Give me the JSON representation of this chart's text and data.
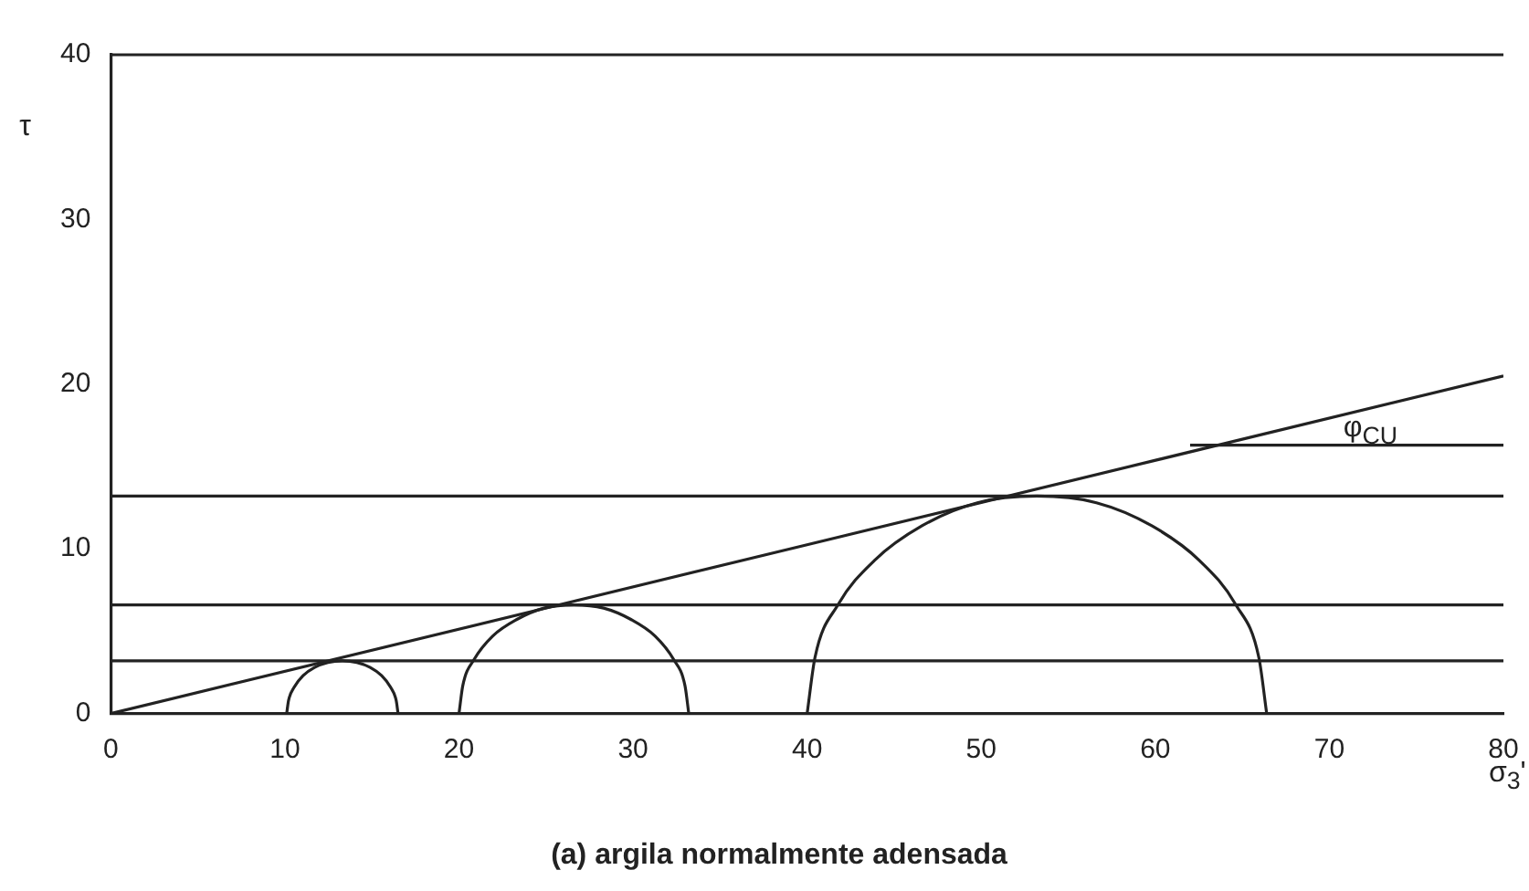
{
  "chart_data": {
    "type": "line",
    "title": "(a) argila normalmente adensada",
    "xlabel": "σ$_{3}$'",
    "ylabel": "τ",
    "xlim": [
      0,
      80
    ],
    "xticks": [
      0,
      10,
      20,
      30,
      40,
      50,
      60,
      70,
      80
    ],
    "ylim": [
      0,
      40
    ],
    "yticks": [
      0,
      10,
      20,
      30,
      40
    ],
    "grid": false,
    "legend": false,
    "marker": "none",
    "line_style": "solid",
    "series": [
      {
        "color": "#222222",
        "x": [
          10.1,
          10.21,
          10.53,
          11.04,
          11.7,
          12.47,
          13.3,
          14.13,
          14.9,
          15.56,
          16.07,
          16.39,
          16.5
        ],
        "values": [
          0,
          0.8,
          1.6,
          2.3,
          2.8,
          3.1,
          3.2,
          3.1,
          2.8,
          2.3,
          1.6,
          0.8,
          0
        ]
      },
      {
        "color": "#222222",
        "x": [
          20,
          20.22,
          20.88,
          21.93,
          23.3,
          24.89,
          26.6,
          28.31,
          29.9,
          31.27,
          32.32,
          32.98,
          33.2
        ],
        "values": [
          0,
          1.7,
          3.3,
          4.7,
          5.7,
          6.4,
          6.6,
          6.4,
          5.7,
          4.7,
          3.3,
          1.7,
          0
        ]
      },
      {
        "color": "#222222",
        "x": [
          40,
          40.45,
          41.77,
          43.87,
          46.6,
          49.78,
          53.2,
          56.62,
          59.8,
          62.53,
          64.63,
          65.95,
          66.4
        ],
        "values": [
          0,
          3.4,
          6.6,
          9.3,
          11.4,
          12.8,
          13.2,
          12.8,
          11.4,
          9.3,
          6.6,
          3.4,
          0
        ]
      },
      {
        "color": "#222222",
        "x": [
          0,
          80
        ],
        "values": [
          0,
          20.5
        ]
      },
      {
        "color": "#222222",
        "x": [
          62,
          80
        ],
        "values": [
          16.3,
          16.3
        ]
      }
    ],
    "ref_lines": [
      {
        "axis": "y",
        "value": 3.2,
        "color": "#222222"
      },
      {
        "axis": "y",
        "value": 6.6,
        "color": "#222222"
      },
      {
        "axis": "y",
        "value": 13.2,
        "color": "#222222"
      },
      {
        "axis": "y",
        "value": 40,
        "color": "#222222"
      }
    ],
    "annotations": [
      "φ$_{CU}$"
    ]
  }
}
